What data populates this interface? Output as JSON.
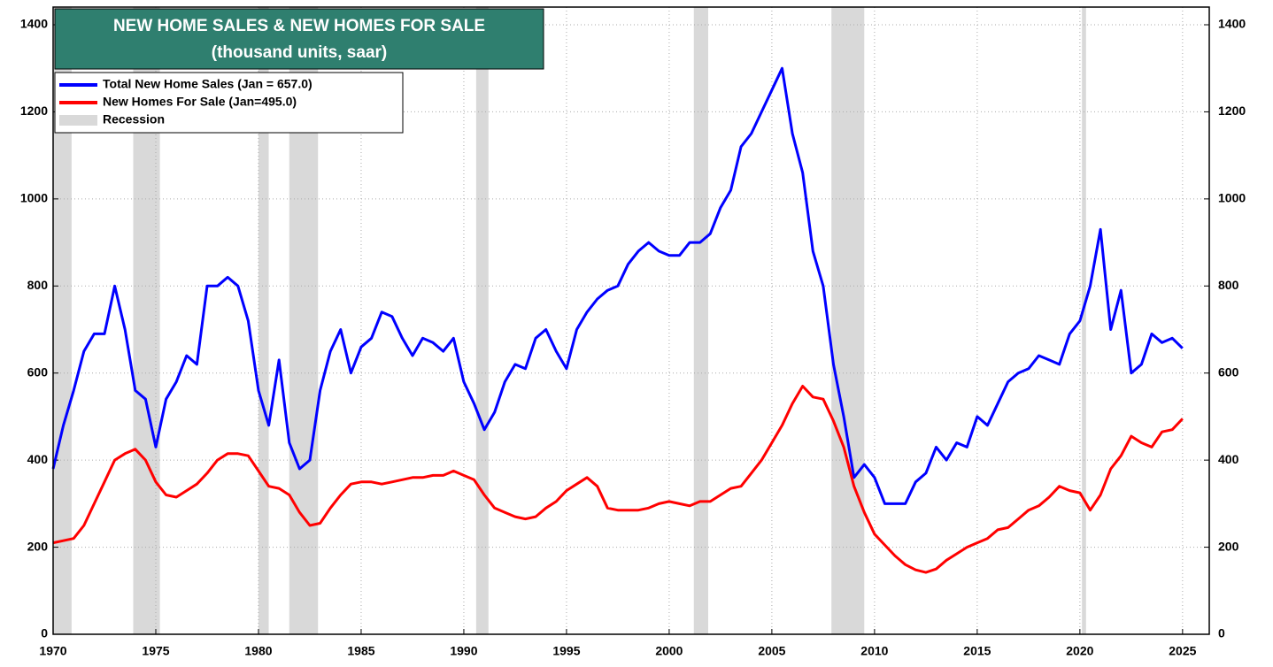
{
  "chart_data": {
    "type": "line",
    "title": "NEW HOME SALES & NEW HOMES FOR SALE",
    "subtitle": "(thousand units, saar)",
    "x": [
      1970,
      1970.5,
      1971,
      1971.5,
      1972,
      1972.5,
      1973,
      1973.5,
      1974,
      1974.5,
      1975,
      1975.5,
      1976,
      1976.5,
      1977,
      1977.5,
      1978,
      1978.5,
      1979,
      1979.5,
      1980,
      1980.5,
      1981,
      1981.5,
      1982,
      1982.5,
      1983,
      1983.5,
      1984,
      1984.5,
      1985,
      1985.5,
      1986,
      1986.5,
      1987,
      1987.5,
      1988,
      1988.5,
      1989,
      1989.5,
      1990,
      1990.5,
      1991,
      1991.5,
      1992,
      1992.5,
      1993,
      1993.5,
      1994,
      1994.5,
      1995,
      1995.5,
      1996,
      1996.5,
      1997,
      1997.5,
      1998,
      1998.5,
      1999,
      1999.5,
      2000,
      2000.5,
      2001,
      2001.5,
      2002,
      2002.5,
      2003,
      2003.5,
      2004,
      2004.5,
      2005,
      2005.5,
      2006,
      2006.5,
      2007,
      2007.5,
      2008,
      2008.5,
      2009,
      2009.5,
      2010,
      2010.5,
      2011,
      2011.5,
      2012,
      2012.5,
      2013,
      2013.5,
      2014,
      2014.5,
      2015,
      2015.5,
      2016,
      2016.5,
      2017,
      2017.5,
      2018,
      2018.5,
      2019,
      2019.5,
      2020,
      2020.5,
      2021,
      2021.5,
      2022,
      2022.5,
      2023,
      2023.5,
      2024,
      2024.5,
      2025
    ],
    "series": [
      {
        "name": "Total New Home Sales (Jan = 657.0)",
        "color": "#0000ff",
        "values": [
          380,
          480,
          560,
          650,
          690,
          690,
          800,
          700,
          560,
          540,
          430,
          540,
          580,
          640,
          620,
          800,
          800,
          820,
          800,
          720,
          560,
          480,
          630,
          440,
          380,
          400,
          560,
          650,
          700,
          600,
          660,
          680,
          740,
          730,
          680,
          640,
          680,
          670,
          650,
          680,
          580,
          530,
          470,
          510,
          580,
          620,
          610,
          680,
          700,
          650,
          610,
          700,
          740,
          770,
          790,
          800,
          850,
          880,
          900,
          880,
          870,
          870,
          900,
          900,
          920,
          980,
          1020,
          1120,
          1150,
          1200,
          1250,
          1300,
          1150,
          1060,
          880,
          800,
          620,
          500,
          360,
          390,
          360,
          300,
          300,
          300,
          350,
          370,
          430,
          400,
          440,
          430,
          500,
          480,
          530,
          580,
          600,
          610,
          640,
          630,
          620,
          690,
          720,
          800,
          930,
          700,
          790,
          600,
          620,
          690,
          670,
          680,
          657
        ]
      },
      {
        "name": "New Homes For Sale (Jan=495.0)",
        "color": "#ff0000",
        "values": [
          210,
          215,
          220,
          250,
          300,
          350,
          400,
          415,
          425,
          400,
          350,
          320,
          315,
          330,
          345,
          370,
          400,
          415,
          415,
          410,
          375,
          340,
          335,
          320,
          280,
          250,
          255,
          290,
          320,
          345,
          350,
          350,
          345,
          350,
          355,
          360,
          360,
          365,
          365,
          375,
          365,
          355,
          320,
          290,
          280,
          270,
          265,
          270,
          290,
          305,
          330,
          345,
          360,
          340,
          290,
          285,
          285,
          285,
          290,
          300,
          305,
          300,
          295,
          305,
          305,
          320,
          335,
          340,
          370,
          400,
          440,
          480,
          530,
          570,
          545,
          540,
          490,
          430,
          340,
          280,
          230,
          205,
          180,
          160,
          148,
          142,
          150,
          170,
          185,
          200,
          210,
          220,
          240,
          245,
          265,
          285,
          295,
          315,
          340,
          330,
          325,
          285,
          320,
          380,
          410,
          455,
          440,
          430,
          465,
          470,
          495
        ]
      }
    ],
    "recession_label": "Recession",
    "recession_color": "#d9d9d9",
    "recessions": [
      [
        1970.0,
        1970.9
      ],
      [
        1973.9,
        1975.2
      ],
      [
        1980.0,
        1980.5
      ],
      [
        1981.5,
        1982.9
      ],
      [
        1990.6,
        1991.2
      ],
      [
        2001.2,
        2001.9
      ],
      [
        2007.9,
        2009.5
      ],
      [
        2020.1,
        2020.3
      ]
    ],
    "xlim": [
      1970,
      2026.3
    ],
    "xticks": [
      1970,
      1975,
      1980,
      1985,
      1990,
      1995,
      2000,
      2005,
      2010,
      2015,
      2020,
      2025
    ],
    "ylim": [
      0,
      1400
    ],
    "yticks": [
      0,
      200,
      400,
      600,
      800,
      1000,
      1200,
      1400
    ],
    "y2lim": [
      0,
      1400
    ],
    "y2ticks": [
      0,
      200,
      400,
      600,
      800,
      1000,
      1200,
      1400
    ],
    "grid": true,
    "legend": "upper left"
  }
}
